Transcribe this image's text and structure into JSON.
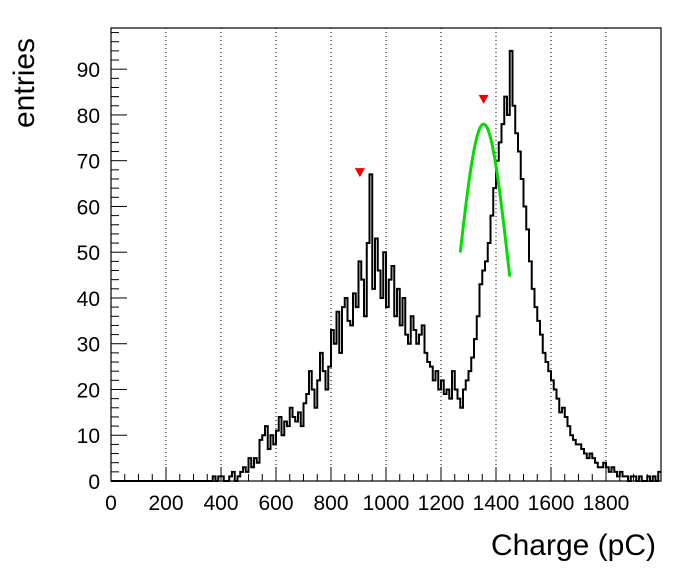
{
  "chart_data": {
    "type": "histogram",
    "title": "",
    "xlabel": "Charge (pC)",
    "ylabel": "entries",
    "xlim": [
      0,
      2000
    ],
    "ylim": [
      0,
      99
    ],
    "x_ticks": [
      0,
      200,
      400,
      600,
      800,
      1000,
      1200,
      1400,
      1600,
      1800
    ],
    "x_tick_labels": [
      "0",
      "200",
      "400",
      "600",
      "800",
      "1000",
      "1200",
      "1400",
      "1600",
      "1800"
    ],
    "y_ticks": [
      0,
      10,
      20,
      30,
      40,
      50,
      60,
      70,
      80,
      90
    ],
    "y_tick_labels": [
      "0",
      "10",
      "20",
      "30",
      "40",
      "50",
      "60",
      "70",
      "80",
      "90"
    ],
    "grid": {
      "x": "dotted vertical",
      "y": "none"
    },
    "bin_width": 10,
    "histogram": {
      "name": "",
      "color": "#000000",
      "x_start": 0,
      "counts": [
        0,
        0,
        0,
        0,
        0,
        0,
        0,
        0,
        0,
        0,
        0,
        0,
        0,
        0,
        0,
        0,
        0,
        0,
        0,
        0,
        0,
        0,
        0,
        0,
        0,
        0,
        0,
        0,
        0,
        0,
        0,
        0,
        0,
        0,
        0,
        0,
        0,
        1,
        0,
        1,
        1,
        0,
        0,
        1,
        2,
        0,
        1,
        2,
        3,
        2,
        5,
        3,
        5,
        4,
        9,
        10,
        12,
        7,
        10,
        8,
        11,
        14,
        10,
        13,
        12,
        16,
        14,
        13,
        15,
        12,
        17,
        19,
        24,
        20,
        16,
        22,
        28,
        24,
        20,
        25,
        33,
        30,
        37,
        28,
        38,
        40,
        35,
        34,
        41,
        38,
        48,
        44,
        36,
        52,
        67,
        42,
        53,
        46,
        40,
        50,
        38,
        44,
        47,
        36,
        42,
        34,
        40,
        32,
        30,
        36,
        33,
        30,
        32,
        34,
        28,
        26,
        25,
        22,
        24,
        20,
        22,
        19,
        20,
        18,
        24,
        20,
        18,
        16,
        20,
        22,
        24,
        27,
        31,
        36,
        43,
        46,
        48,
        52,
        58,
        64,
        70,
        74,
        78,
        84,
        80,
        94,
        82,
        76,
        72,
        66,
        60,
        55,
        48,
        42,
        38,
        35,
        32,
        28,
        26,
        24,
        22,
        20,
        18,
        15,
        16,
        14,
        12,
        10,
        9,
        8,
        8,
        7,
        6,
        5,
        6,
        5,
        4,
        3,
        3,
        4,
        3,
        2,
        3,
        2,
        1,
        2,
        1,
        1,
        0,
        1,
        1,
        0,
        1,
        0,
        0,
        1,
        0,
        1,
        0,
        2
      ]
    },
    "fit": {
      "color": "#00dd00",
      "type": "gaussian",
      "amplitude": 78,
      "mean": 1355,
      "sigma": 90,
      "x_range": [
        1270,
        1450
      ]
    },
    "peak_markers": {
      "color": "#ee0000",
      "points": [
        {
          "x": 905,
          "y": 67.5
        },
        {
          "x": 1355,
          "y": 83.5
        }
      ]
    }
  }
}
